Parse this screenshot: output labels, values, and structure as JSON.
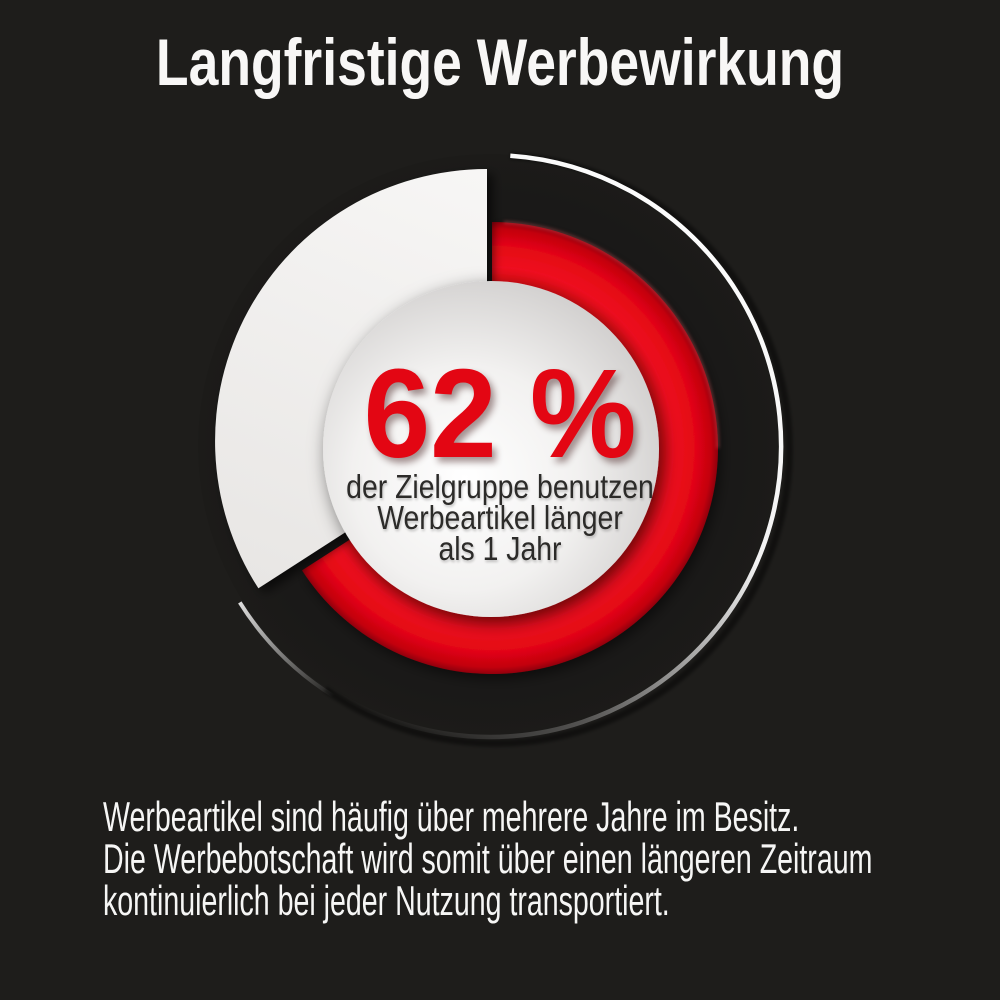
{
  "title": "Langfristige Werbewirkung",
  "chart_data": {
    "type": "pie",
    "variant": "exploded-donut",
    "title": "Langfristige Werbewirkung",
    "slices": [
      {
        "label": "der Zielgruppe benutzen Werbeartikel länger als 1 Jahr",
        "value_pct": 62,
        "color": "#e30613"
      },
      {
        "label": "",
        "value_pct": 38,
        "color": "#f2f0ee"
      }
    ],
    "center_value_label": "62 %",
    "center_caption_lines": [
      "der Zielgruppe benutzen",
      "Werbeartikel länger",
      "als 1 Jahr"
    ],
    "legend": "none",
    "background_color": "#1e1d1b"
  },
  "footer": {
    "lines": [
      "Werbeartikel sind häufig über mehrere Jahre im Besitz.",
      "Die Werbebotschaft wird somit über einen längeren Zeitraum",
      "kontinuierlich bei jeder Nutzung transportiert."
    ]
  },
  "colors": {
    "background": "#1e1d1b",
    "accent_red": "#e30613",
    "slice_white": "#f2f0ee",
    "center_disc": "#e9e8e7",
    "title_text": "#f8f7f6",
    "caption_text": "#2c2b29",
    "footer_text": "#f6f6f5"
  }
}
